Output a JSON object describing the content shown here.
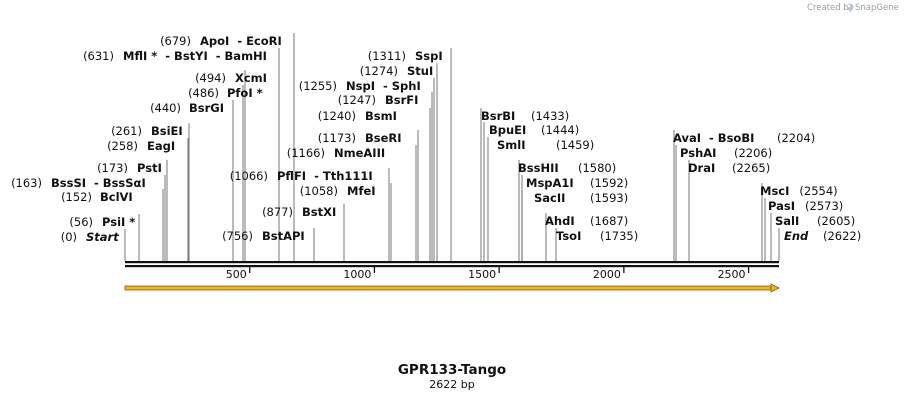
{
  "branding": {
    "created_by": "Created by",
    "app_name": "SnapGene"
  },
  "sequence": {
    "name": "GPR133-Tango",
    "length_bp": 2622,
    "length_label": "2622 bp"
  },
  "ruler": {
    "ticks": [
      500,
      1000,
      1500,
      2000,
      2500
    ],
    "tick_labels": [
      "500",
      "1000",
      "1500",
      "2000",
      "2500"
    ]
  },
  "feature": {
    "type": "arrow",
    "direction": "forward",
    "start": 0,
    "end": 2622,
    "color": "#f0b429"
  },
  "sites": [
    {
      "pos": "(56)",
      "label": "PsiI *",
      "bp": 56
    },
    {
      "pos": "(0)",
      "label": "Start",
      "bp": 0,
      "italic": true
    },
    {
      "pos": "(152)",
      "label": "BclVI",
      "bp": 152
    },
    {
      "pos": "(163)",
      "label": "BssSI  - BssSαI",
      "bp": 163
    },
    {
      "pos": "(173)",
      "label": "PstI",
      "bp": 173
    },
    {
      "pos": "(258)",
      "label": "EagI",
      "bp": 258
    },
    {
      "pos": "(261)",
      "label": "BsiEI",
      "bp": 261
    },
    {
      "pos": "(440)",
      "label": "BsrGI",
      "bp": 440
    },
    {
      "pos": "(486)",
      "label": "PfoI *",
      "bp": 486
    },
    {
      "pos": "(494)",
      "label": "XcmI",
      "bp": 494
    },
    {
      "pos": "(631)",
      "label": "MflI *  - BstYI  - BamHI",
      "bp": 631
    },
    {
      "pos": "(679)",
      "label": "ApoI  - EcoRI",
      "bp": 679
    },
    {
      "pos": "(756)",
      "label": "BstAPI",
      "bp": 756
    },
    {
      "pos": "(877)",
      "label": "BstXI",
      "bp": 877
    },
    {
      "pos": "(1066)",
      "label": "PflFI  - Tth111I",
      "bp": 1066
    },
    {
      "pos": "(1058)",
      "label": "MfeI",
      "bp": 1058
    },
    {
      "pos": "(1166)",
      "label": "NmeAIII",
      "bp": 1166
    },
    {
      "pos": "(1173)",
      "label": "BseRI",
      "bp": 1173
    },
    {
      "pos": "(1240)",
      "label": "BsmI",
      "bp": 1240
    },
    {
      "pos": "(1247)",
      "label": "BsrFI",
      "bp": 1247
    },
    {
      "pos": "(1255)",
      "label": "NspI  - SphI",
      "bp": 1255
    },
    {
      "pos": "(1274)",
      "label": "StuI",
      "bp": 1274
    },
    {
      "pos": "(1311)",
      "label": "SspI",
      "bp": 1311
    },
    {
      "pos": "(1433)",
      "label": "BsrBI",
      "bp": 1433
    },
    {
      "pos": "(1444)",
      "label": "BpuEI",
      "bp": 1444
    },
    {
      "pos": "(1459)",
      "label": "SmlI",
      "bp": 1459
    },
    {
      "pos": "(1580)",
      "label": "BssHII",
      "bp": 1580
    },
    {
      "pos": "(1592)",
      "label": "MspA1I",
      "bp": 1592
    },
    {
      "pos": "(1593)",
      "label": "SacII",
      "bp": 1593
    },
    {
      "pos": "(1687)",
      "label": "AhdI",
      "bp": 1687
    },
    {
      "pos": "(1735)",
      "label": "TsoI",
      "bp": 1735
    },
    {
      "pos": "(2204)",
      "label": "AvaI  - BsoBI",
      "bp": 2204
    },
    {
      "pos": "(2206)",
      "label": "PshAI",
      "bp": 2206
    },
    {
      "pos": "(2265)",
      "label": "DraI",
      "bp": 2265
    },
    {
      "pos": "(2554)",
      "label": "MscI",
      "bp": 2554
    },
    {
      "pos": "(2573)",
      "label": "PasI",
      "bp": 2573
    },
    {
      "pos": "(2605)",
      "label": "SalI",
      "bp": 2605
    },
    {
      "pos": "(2622)",
      "label": "End",
      "bp": 2622,
      "italic": true
    }
  ]
}
